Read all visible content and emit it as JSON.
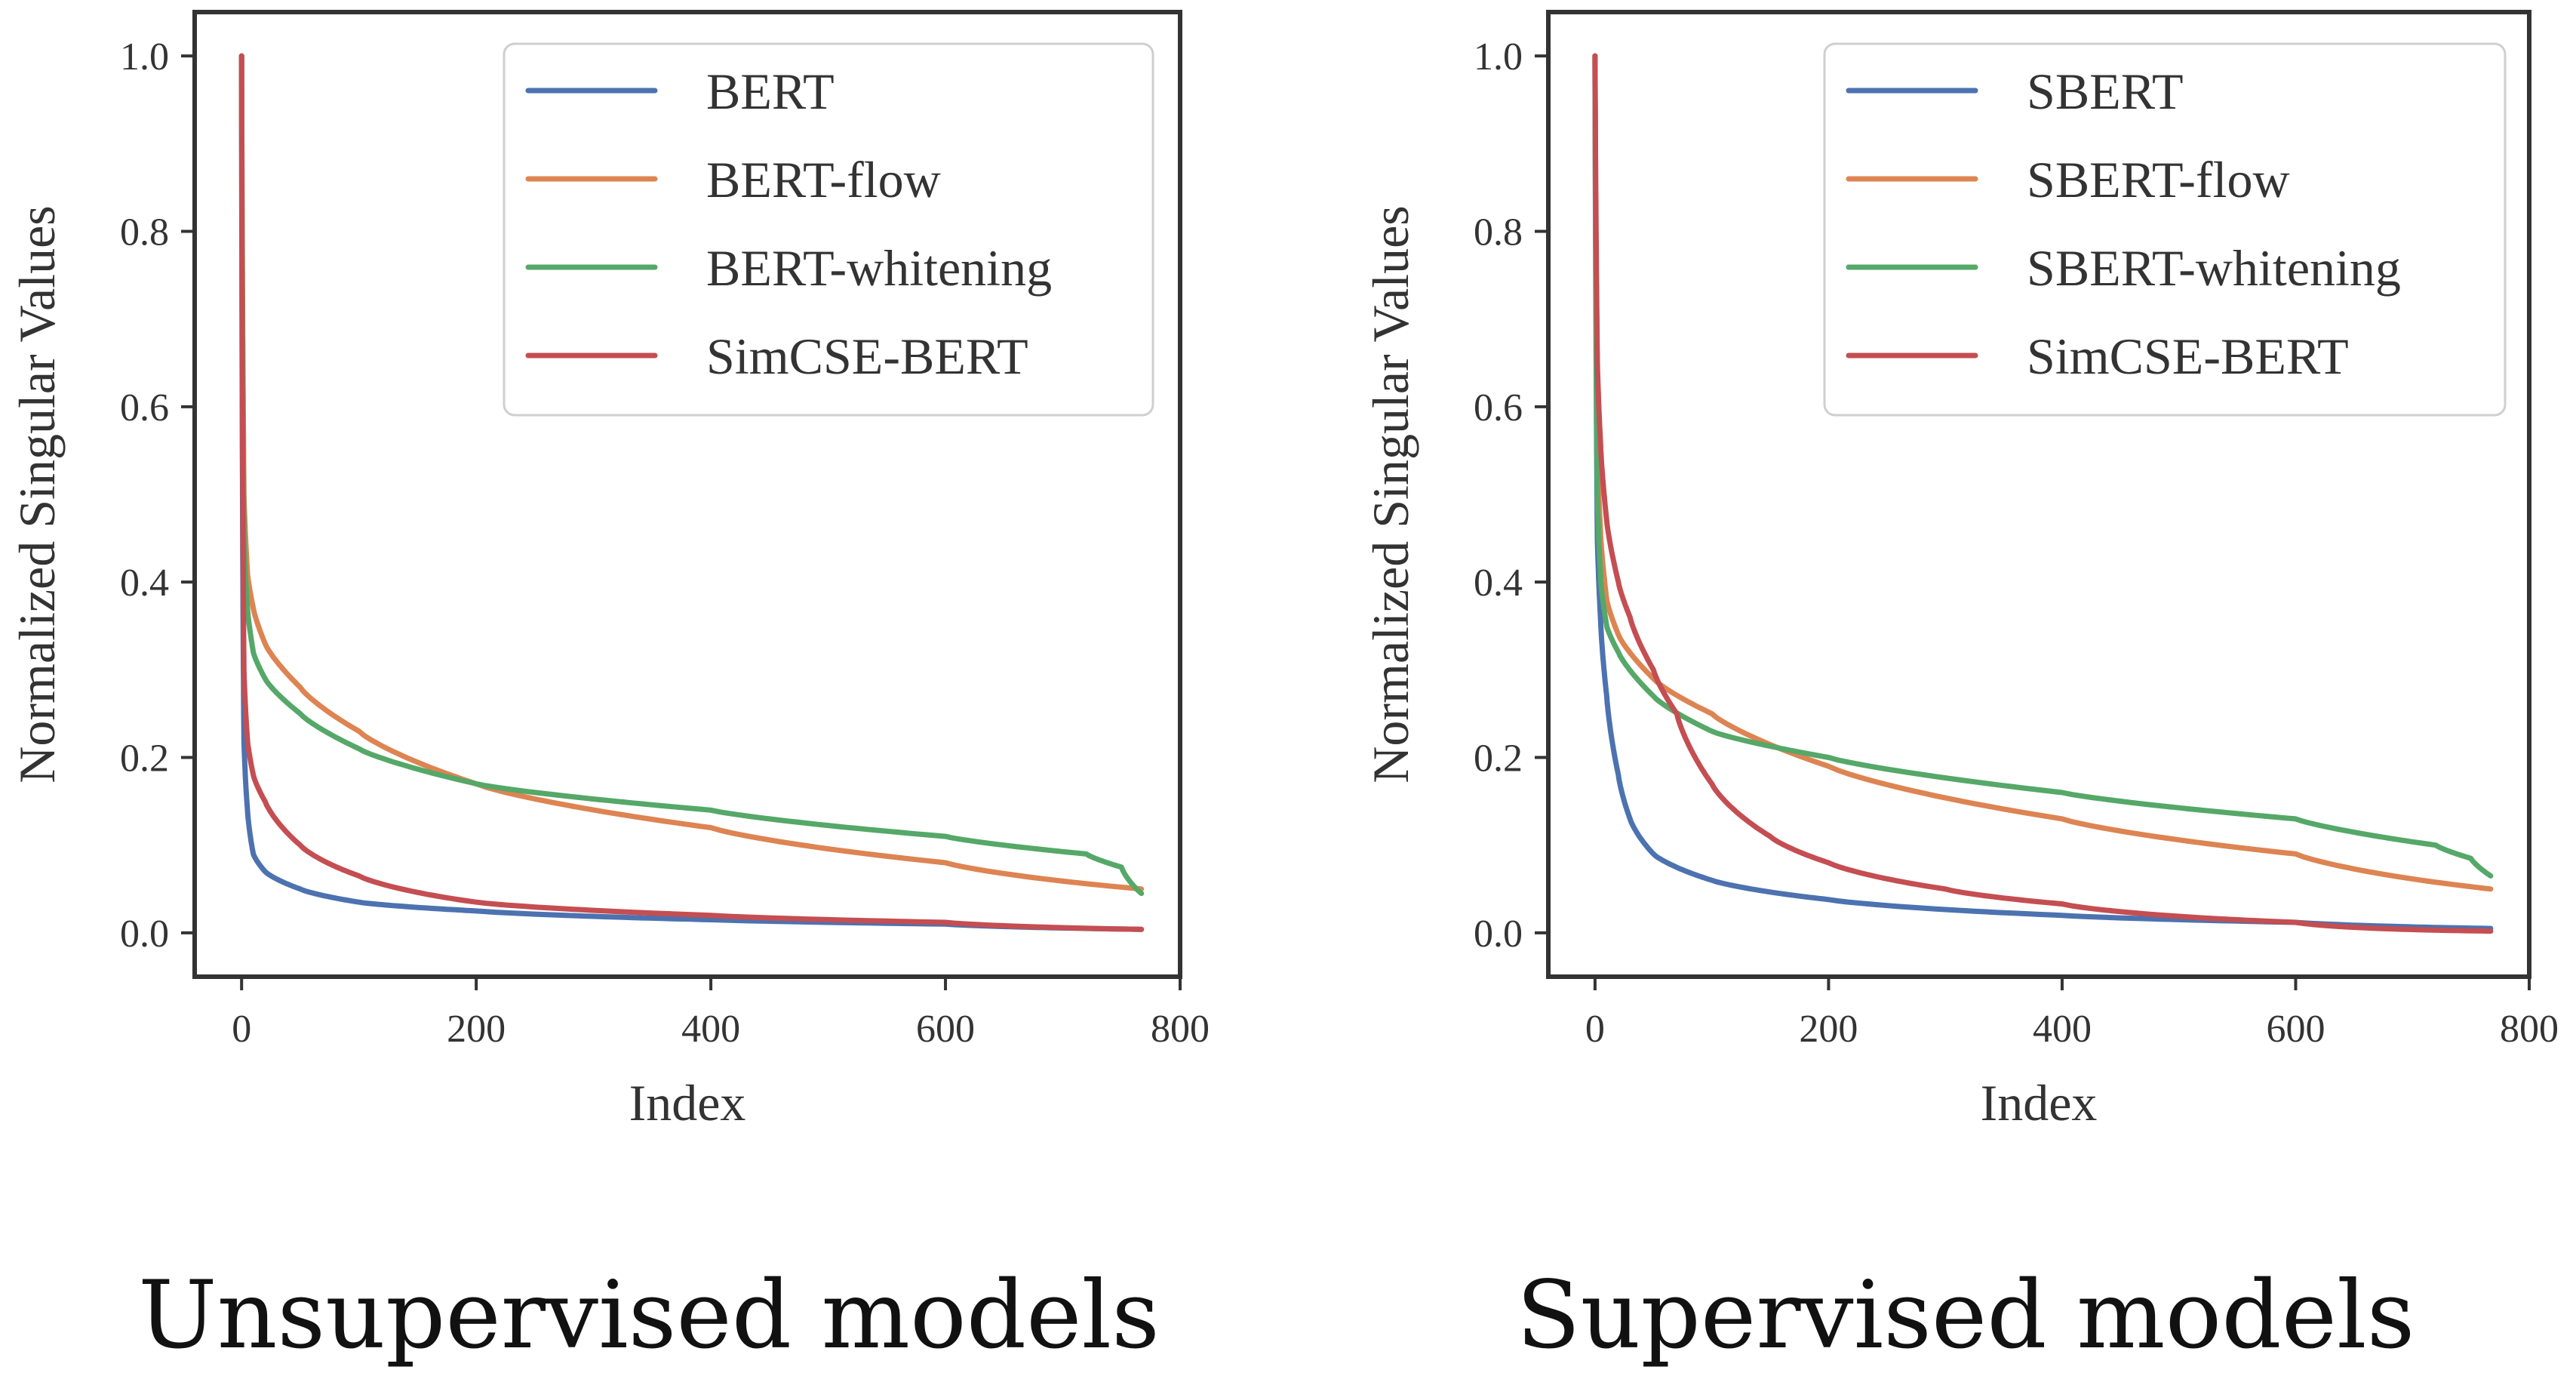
{
  "chart_data": [
    {
      "type": "line",
      "caption": "Unsupervised models",
      "xlabel": "Index",
      "ylabel": "Normalized Singular Values",
      "xlim": [
        -40,
        800
      ],
      "ylim": [
        -0.05,
        1.05
      ],
      "xticks": [
        "0",
        "200",
        "400",
        "600",
        "800"
      ],
      "yticks": [
        "0.0",
        "0.2",
        "0.4",
        "0.6",
        "0.8",
        "1.0"
      ],
      "grid": false,
      "legend_position": "top-right",
      "series": [
        {
          "name": "BERT",
          "color": "#4c72b0",
          "x": [
            0,
            2,
            5,
            10,
            20,
            50,
            100,
            200,
            400,
            600,
            767
          ],
          "y": [
            1.0,
            0.22,
            0.14,
            0.09,
            0.07,
            0.05,
            0.035,
            0.025,
            0.015,
            0.01,
            0.004
          ]
        },
        {
          "name": "BERT-flow",
          "color": "#dd8452",
          "x": [
            0,
            2,
            5,
            10,
            20,
            50,
            100,
            200,
            400,
            600,
            767
          ],
          "y": [
            1.0,
            0.5,
            0.41,
            0.37,
            0.33,
            0.28,
            0.23,
            0.17,
            0.12,
            0.08,
            0.05
          ]
        },
        {
          "name": "BERT-whitening",
          "color": "#55a868",
          "x": [
            0,
            2,
            5,
            10,
            20,
            50,
            100,
            200,
            400,
            600,
            720,
            750,
            767
          ],
          "y": [
            1.0,
            0.45,
            0.37,
            0.32,
            0.29,
            0.25,
            0.21,
            0.17,
            0.14,
            0.11,
            0.09,
            0.075,
            0.045
          ]
        },
        {
          "name": "SimCSE-BERT",
          "color": "#c44e52",
          "x": [
            0,
            2,
            5,
            10,
            20,
            50,
            100,
            200,
            400,
            600,
            767
          ],
          "y": [
            1.0,
            0.3,
            0.22,
            0.18,
            0.15,
            0.1,
            0.065,
            0.035,
            0.02,
            0.012,
            0.004
          ]
        }
      ]
    },
    {
      "type": "line",
      "caption": "Supervised models",
      "xlabel": "Index",
      "ylabel": "Normalized Singular Values",
      "xlim": [
        -40,
        800
      ],
      "ylim": [
        -0.05,
        1.05
      ],
      "xticks": [
        "0",
        "200",
        "400",
        "600",
        "800"
      ],
      "yticks": [
        "0.0",
        "0.2",
        "0.4",
        "0.6",
        "0.8",
        "1.0"
      ],
      "grid": false,
      "legend_position": "top-right",
      "series": [
        {
          "name": "SBERT",
          "color": "#4c72b0",
          "x": [
            0,
            2,
            5,
            10,
            20,
            30,
            50,
            100,
            200,
            400,
            600,
            767
          ],
          "y": [
            1.0,
            0.45,
            0.35,
            0.27,
            0.18,
            0.13,
            0.09,
            0.06,
            0.038,
            0.02,
            0.012,
            0.005
          ]
        },
        {
          "name": "SBERT-flow",
          "color": "#dd8452",
          "x": [
            0,
            2,
            5,
            10,
            20,
            50,
            100,
            200,
            400,
            600,
            767
          ],
          "y": [
            1.0,
            0.55,
            0.45,
            0.38,
            0.34,
            0.29,
            0.25,
            0.19,
            0.13,
            0.09,
            0.05
          ]
        },
        {
          "name": "SBERT-whitening",
          "color": "#55a868",
          "x": [
            0,
            2,
            5,
            10,
            20,
            50,
            100,
            200,
            400,
            600,
            720,
            750,
            767
          ],
          "y": [
            1.0,
            0.5,
            0.4,
            0.35,
            0.32,
            0.27,
            0.23,
            0.2,
            0.16,
            0.13,
            0.1,
            0.085,
            0.065
          ]
        },
        {
          "name": "SimCSE-BERT",
          "color": "#c44e52",
          "x": [
            0,
            2,
            5,
            10,
            20,
            30,
            50,
            70,
            100,
            150,
            200,
            300,
            400,
            600,
            767
          ],
          "y": [
            1.0,
            0.65,
            0.55,
            0.47,
            0.4,
            0.36,
            0.3,
            0.25,
            0.17,
            0.11,
            0.08,
            0.05,
            0.033,
            0.012,
            0.002
          ]
        }
      ]
    }
  ]
}
